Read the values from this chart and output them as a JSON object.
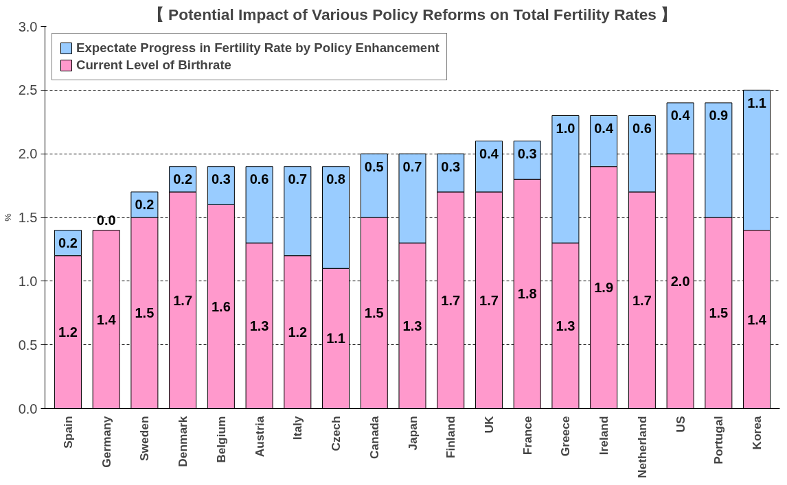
{
  "chart_data": {
    "type": "bar",
    "title": "【 Potential Impact of Various Policy Reforms on Total Fertility Rates 】",
    "ylabel": "%",
    "categories": [
      "Spain",
      "Germany",
      "Sweden",
      "Denmark",
      "Belgium",
      "Austria",
      "Italy",
      "Czech",
      "Canada",
      "Japan",
      "Finland",
      "UK",
      "France",
      "Greece",
      "Ireland",
      "Netherland",
      "US",
      "Portugal",
      "Korea"
    ],
    "stacked": true,
    "grid": "y",
    "legend": "top left",
    "ylim": [
      0,
      3
    ],
    "yticks": [
      {
        "value": 0,
        "label": "0.0"
      },
      {
        "value": 0.5,
        "label": "0.5"
      },
      {
        "value": 1,
        "label": "1.0"
      },
      {
        "value": 1.5,
        "label": "1.5"
      },
      {
        "value": 2,
        "label": "2.0"
      },
      {
        "value": 2.5,
        "label": "2.5"
      },
      {
        "value": 3,
        "label": "3.0"
      }
    ],
    "series": [
      {
        "name": "Current Level of Birthrate",
        "color": "#ff99cc",
        "values": [
          1.2,
          1.4,
          1.5,
          1.7,
          1.6,
          1.3,
          1.2,
          1.1,
          1.5,
          1.3,
          1.7,
          1.7,
          1.8,
          1.3,
          1.9,
          1.7,
          2.0,
          1.5,
          1.4
        ],
        "value_labels": [
          "1.2",
          "1.4",
          "1.5",
          "1.7",
          "1.6",
          "1.3",
          "1.2",
          "1.1",
          "1.5",
          "1.3",
          "1.7",
          "1.7",
          "1.8",
          "1.3",
          "1.9",
          "1.7",
          "2.0",
          "1.5",
          "1.4"
        ]
      },
      {
        "name": "Expectate Progress in Fertility Rate by Policy Enhancement",
        "color": "#99ccff",
        "values": [
          0.2,
          0.0,
          0.2,
          0.2,
          0.3,
          0.6,
          0.7,
          0.8,
          0.5,
          0.7,
          0.3,
          0.4,
          0.3,
          1.0,
          0.4,
          0.6,
          0.4,
          0.9,
          1.1
        ],
        "value_labels": [
          "0.2",
          "0.0",
          "0.2",
          "0.2",
          "0.3",
          "0.6",
          "0.7",
          "0.8",
          "0.5",
          "0.7",
          "0.3",
          "0.4",
          "0.3",
          "1.0",
          "0.4",
          "0.6",
          "0.4",
          "0.9",
          "1.1"
        ]
      }
    ]
  }
}
